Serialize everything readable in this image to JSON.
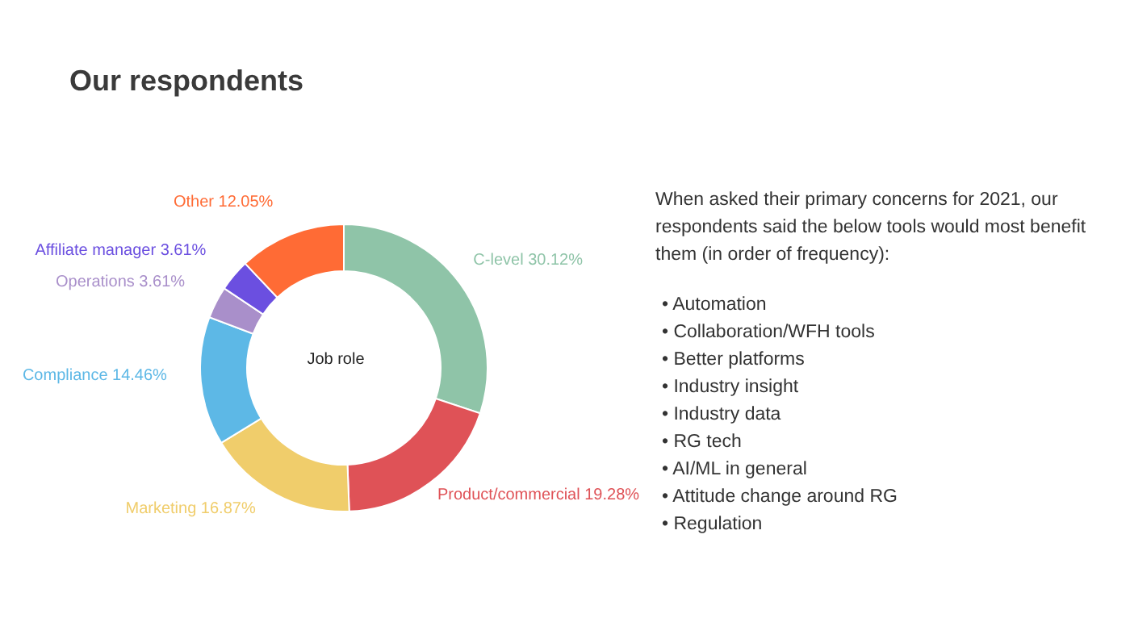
{
  "chart_data": {
    "type": "donut",
    "title": "Our respondents",
    "categories": [
      "C-level",
      "Product/commercial",
      "Marketing",
      "Compliance",
      "Operations",
      "Affiliate manager",
      "Other"
    ],
    "values": [
      30.12,
      19.28,
      16.87,
      14.46,
      3.61,
      3.61,
      12.05
    ],
    "value_labels": [
      "30.12%",
      "19.28%",
      "16.87%",
      "14.46%",
      "3.61%",
      "3.61%",
      "12.05%"
    ],
    "colors": [
      "#8fc4a8",
      "#df5257",
      "#f0cd6b",
      "#5db8e6",
      "#a98fca",
      "#6b4fe0",
      "#ff6b35"
    ],
    "legend": false,
    "annotations": [
      "Job role",
      "When asked their primary concerns for 2021, our respondents said the below tools would most benefit them (in order of frequency):",
      "• Automation",
      "• Collaboration/WFH tools",
      "• Better platforms",
      "• Industry insight",
      "• Industry data",
      "• RG tech",
      "• AI/ML in general",
      "• Attitude change around RG",
      "• Regulation"
    ]
  }
}
